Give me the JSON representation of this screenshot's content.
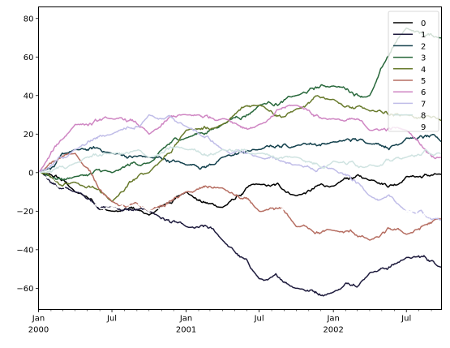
{
  "chart_data": {
    "type": "line",
    "title": "",
    "xlabel": "",
    "ylabel": "",
    "x_range": [
      "2000-01-01",
      "2002-09-26"
    ],
    "ylim": [
      -71,
      86
    ],
    "y_ticks": [
      -60,
      -40,
      -20,
      0,
      20,
      40,
      60,
      80
    ],
    "x_ticks": [
      {
        "date": "2000-01-01",
        "label": "Jan",
        "sublabel": "2000"
      },
      {
        "date": "2000-07-01",
        "label": "Jul",
        "sublabel": ""
      },
      {
        "date": "2001-01-01",
        "label": "Jan",
        "sublabel": "2001"
      },
      {
        "date": "2001-07-01",
        "label": "Jul",
        "sublabel": ""
      },
      {
        "date": "2002-01-01",
        "label": "Jan",
        "sublabel": "2002"
      },
      {
        "date": "2002-07-01",
        "label": "Jul",
        "sublabel": ""
      }
    ],
    "grid": false,
    "legend_position": "top-right",
    "series": [
      {
        "name": "0",
        "color": "#000000",
        "dates": [
          "2000-01-01",
          "2000-04-01",
          "2000-07-01",
          "2000-10-01",
          "2001-01-01",
          "2001-04-01",
          "2001-07-01",
          "2001-10-01",
          "2002-01-01",
          "2002-04-01",
          "2002-07-01",
          "2002-09-26"
        ],
        "values": [
          0,
          -10,
          -20,
          -22,
          -10,
          -18,
          -6,
          -12,
          -7,
          -4,
          -2,
          -1
        ]
      },
      {
        "name": "1",
        "color": "#1d1a3c",
        "dates": [
          "2000-01-01",
          "2000-04-01",
          "2000-07-01",
          "2000-10-01",
          "2001-01-01",
          "2001-04-01",
          "2001-07-01",
          "2001-10-01",
          "2002-01-01",
          "2002-04-01",
          "2002-07-01",
          "2002-09-26"
        ],
        "values": [
          0,
          -10,
          -18,
          -20,
          -28,
          -35,
          -55,
          -60,
          -62,
          -52,
          -44,
          -49
        ]
      },
      {
        "name": "2",
        "color": "#113f4b",
        "dates": [
          "2000-01-01",
          "2000-04-01",
          "2000-07-01",
          "2000-10-01",
          "2001-01-01",
          "2001-04-01",
          "2001-07-01",
          "2001-10-01",
          "2002-01-01",
          "2002-04-01",
          "2002-07-01",
          "2002-09-26"
        ],
        "values": [
          0,
          12,
          10,
          8,
          4,
          8,
          12,
          14,
          16,
          15,
          18,
          16
        ]
      },
      {
        "name": "3",
        "color": "#27673a",
        "dates": [
          "2000-01-01",
          "2000-04-01",
          "2000-07-01",
          "2000-10-01",
          "2001-01-01",
          "2001-04-01",
          "2001-07-01",
          "2001-10-01",
          "2002-01-01",
          "2002-04-01",
          "2002-07-01",
          "2002-09-26"
        ],
        "values": [
          0,
          -2,
          0,
          5,
          18,
          25,
          35,
          40,
          45,
          40,
          75,
          70
        ]
      },
      {
        "name": "4",
        "color": "#687a2c",
        "dates": [
          "2000-01-01",
          "2000-04-01",
          "2000-07-01",
          "2000-10-01",
          "2001-01-01",
          "2001-04-01",
          "2001-07-01",
          "2001-10-01",
          "2002-01-01",
          "2002-04-01",
          "2002-07-01",
          "2002-09-26"
        ],
        "values": [
          0,
          -5,
          -15,
          0,
          22,
          25,
          35,
          33,
          38,
          32,
          30,
          27
        ]
      },
      {
        "name": "5",
        "color": "#b66e62",
        "dates": [
          "2000-01-01",
          "2000-04-01",
          "2000-07-01",
          "2000-10-01",
          "2001-01-01",
          "2001-04-01",
          "2001-07-01",
          "2001-10-01",
          "2002-01-01",
          "2002-04-01",
          "2002-07-01",
          "2002-09-26"
        ],
        "values": [
          0,
          10,
          -15,
          -20,
          -10,
          -8,
          -20,
          -28,
          -30,
          -35,
          -32,
          -24
        ]
      },
      {
        "name": "6",
        "color": "#cf86c3",
        "dates": [
          "2000-01-01",
          "2000-04-01",
          "2000-07-01",
          "2000-10-01",
          "2001-01-01",
          "2001-04-01",
          "2001-07-01",
          "2001-10-01",
          "2002-01-01",
          "2002-04-01",
          "2002-07-01",
          "2002-09-26"
        ],
        "values": [
          0,
          25,
          28,
          20,
          30,
          28,
          25,
          35,
          28,
          22,
          22,
          8
        ]
      },
      {
        "name": "7",
        "color": "#c0bde8",
        "dates": [
          "2000-01-01",
          "2000-04-01",
          "2000-07-01",
          "2000-10-01",
          "2001-01-01",
          "2001-04-01",
          "2001-07-01",
          "2001-10-01",
          "2002-01-01",
          "2002-04-01",
          "2002-07-01",
          "2002-09-26"
        ],
        "values": [
          0,
          12,
          20,
          30,
          24,
          12,
          8,
          4,
          2,
          -12,
          -20,
          -25
        ]
      },
      {
        "name": "8",
        "color": "#cfe3e1",
        "dates": [
          "2000-01-01",
          "2000-04-01",
          "2000-07-01",
          "2000-10-01",
          "2001-01-01",
          "2001-04-01",
          "2001-07-01",
          "2001-10-01",
          "2002-01-01",
          "2002-04-01",
          "2002-07-01",
          "2002-09-26"
        ],
        "values": [
          0,
          5,
          10,
          8,
          12,
          12,
          10,
          8,
          6,
          4,
          8,
          10
        ]
      },
      {
        "name": "9",
        "color": "#ffffff",
        "dates": [
          "2000-01-01",
          "2000-04-01",
          "2000-07-01",
          "2000-10-01",
          "2001-01-01",
          "2001-04-01",
          "2001-07-01",
          "2001-10-01",
          "2002-01-01",
          "2002-04-01",
          "2002-07-01",
          "2002-09-26"
        ],
        "values": [
          0,
          -15,
          -18,
          -20,
          -12,
          -20,
          -25,
          -15,
          -10,
          -18,
          -20,
          -22
        ]
      }
    ]
  }
}
